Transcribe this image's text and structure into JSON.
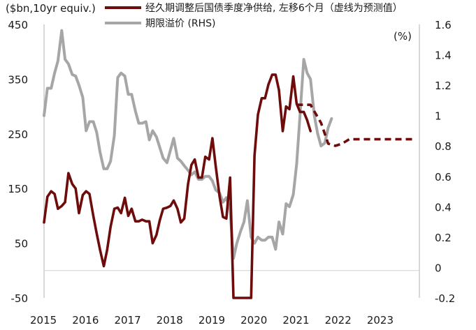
{
  "chart_data": {
    "type": "line",
    "yleft_label": "($bn,10yr equiv.)",
    "yright_label": "(%)",
    "legend": [
      {
        "name": "经久期调整后国债季度净供给, 左移6个月（虚线为预测值）",
        "color": "#6e0b0b"
      },
      {
        "name": "期限溢价 (RHS)",
        "color": "#a6a6a6"
      }
    ],
    "x_ticks": [
      "2015",
      "2016",
      "2017",
      "2018",
      "2019",
      "2020",
      "2021",
      "2022",
      "2023"
    ],
    "yleft_ticks": [
      "450",
      "350",
      "250",
      "150",
      "50",
      "-50"
    ],
    "yright_ticks": [
      "1.6",
      "1.4",
      "1.2",
      "1",
      "0.8",
      "0.6",
      "0.4",
      "0.2",
      "0",
      "-0.2"
    ],
    "x_range": [
      2015.0,
      2023.75
    ],
    "yleft_range": [
      -50,
      450
    ],
    "yright_range": [
      -0.2,
      1.6
    ],
    "series": [
      {
        "name": "经久期调整后国债季度净供给, 左移6个月（虚线为预测值）",
        "axis": "left",
        "color": "#6e0b0b",
        "style": "solid",
        "x": [
          2015.0,
          2015.08,
          2015.17,
          2015.25,
          2015.33,
          2015.42,
          2015.5,
          2015.58,
          2015.67,
          2015.75,
          2015.83,
          2015.92,
          2016.0,
          2016.08,
          2016.17,
          2016.25,
          2016.33,
          2016.42,
          2016.5,
          2016.58,
          2016.67,
          2016.75,
          2016.83,
          2016.92,
          2017.0,
          2017.08,
          2017.17,
          2017.25,
          2017.33,
          2017.42,
          2017.5,
          2017.58,
          2017.67,
          2017.75,
          2017.83,
          2017.92,
          2018.0,
          2018.08,
          2018.17,
          2018.25,
          2018.33,
          2018.42,
          2018.5,
          2018.58,
          2018.67,
          2018.75,
          2018.83,
          2018.92,
          2019.0,
          2019.08,
          2019.17,
          2019.25,
          2019.33,
          2019.42,
          2019.5,
          2019.58,
          2019.67,
          2019.75,
          2019.83,
          2019.92,
          2020.0,
          2020.08,
          2020.17,
          2020.25,
          2020.33,
          2020.42,
          2020.5,
          2020.58,
          2020.67,
          2020.75,
          2020.83,
          2020.92,
          2021.0,
          2021.08,
          2021.17,
          2021.25,
          2021.33
        ],
        "y": [
          88,
          135,
          145,
          140,
          113,
          118,
          125,
          178,
          158,
          150,
          105,
          138,
          145,
          140,
          100,
          68,
          38,
          8,
          38,
          80,
          113,
          115,
          105,
          133,
          100,
          113,
          90,
          90,
          93,
          90,
          90,
          50,
          65,
          92,
          113,
          115,
          118,
          128,
          113,
          88,
          95,
          158,
          193,
          203,
          170,
          170,
          208,
          203,
          242,
          190,
          135,
          98,
          95,
          170,
          -70,
          -70,
          -70,
          -70,
          -70,
          -70,
          210,
          285,
          315,
          315,
          340,
          358,
          358,
          330,
          255,
          300,
          295,
          355,
          305,
          290,
          290,
          275,
          255
        ],
        "xnote": "values clipped at chart floor; series dips below axis minimum around 2019.6-2019.95"
      },
      {
        "name": "预测值",
        "axis": "left",
        "color": "#6e0b0b",
        "style": "dashed",
        "x": [
          2021.0,
          2021.33,
          2021.58,
          2021.75,
          2021.92,
          2022.08,
          2022.25,
          2022.5,
          2022.75,
          2023.0,
          2023.25,
          2023.5,
          2023.75
        ],
        "y": [
          303,
          303,
          270,
          232,
          228,
          232,
          240,
          240,
          240,
          240,
          240,
          240,
          240
        ]
      },
      {
        "name": "期限溢价 (RHS)",
        "axis": "right",
        "color": "#a6a6a6",
        "style": "solid",
        "x": [
          2015.0,
          2015.08,
          2015.17,
          2015.25,
          2015.33,
          2015.42,
          2015.5,
          2015.58,
          2015.67,
          2015.75,
          2015.83,
          2015.92,
          2016.0,
          2016.08,
          2016.17,
          2016.25,
          2016.33,
          2016.42,
          2016.5,
          2016.58,
          2016.67,
          2016.75,
          2016.83,
          2016.92,
          2017.0,
          2017.08,
          2017.17,
          2017.25,
          2017.33,
          2017.42,
          2017.5,
          2017.58,
          2017.67,
          2017.75,
          2017.83,
          2017.92,
          2018.0,
          2018.08,
          2018.17,
          2018.25,
          2018.33,
          2018.42,
          2018.5,
          2018.58,
          2018.67,
          2018.75,
          2018.83,
          2018.92,
          2019.0,
          2019.08,
          2019.17,
          2019.25,
          2019.33,
          2019.42,
          2019.5,
          2019.58,
          2019.67,
          2019.75,
          2019.83,
          2019.92,
          2020.0,
          2020.08,
          2020.17,
          2020.25,
          2020.33,
          2020.42,
          2020.5,
          2020.58,
          2020.67,
          2020.75,
          2020.83,
          2020.92,
          2021.0,
          2021.08,
          2021.17,
          2021.25,
          2021.33,
          2021.42,
          2021.5,
          2021.58,
          2021.67,
          2021.75,
          2021.83
        ],
        "y": [
          1.0,
          1.18,
          1.18,
          1.28,
          1.36,
          1.56,
          1.37,
          1.34,
          1.27,
          1.26,
          1.2,
          1.12,
          0.9,
          0.96,
          0.96,
          0.89,
          0.76,
          0.65,
          0.65,
          0.7,
          0.87,
          1.25,
          1.28,
          1.26,
          1.14,
          1.14,
          1.03,
          0.95,
          0.95,
          0.96,
          0.84,
          0.9,
          0.86,
          0.79,
          0.72,
          0.69,
          0.77,
          0.85,
          0.72,
          0.7,
          0.67,
          0.64,
          0.61,
          0.63,
          0.58,
          0.58,
          0.6,
          0.6,
          0.57,
          0.51,
          0.49,
          0.43,
          0.46,
          0.38,
          0.06,
          0.16,
          0.24,
          0.3,
          0.44,
          0.2,
          0.16,
          0.2,
          0.18,
          0.18,
          0.2,
          0.2,
          0.12,
          0.3,
          0.22,
          0.42,
          0.4,
          0.48,
          0.68,
          1.0,
          1.37,
          1.28,
          1.24,
          1.0,
          0.88,
          0.8,
          0.82,
          0.92,
          0.98
        ]
      }
    ]
  }
}
